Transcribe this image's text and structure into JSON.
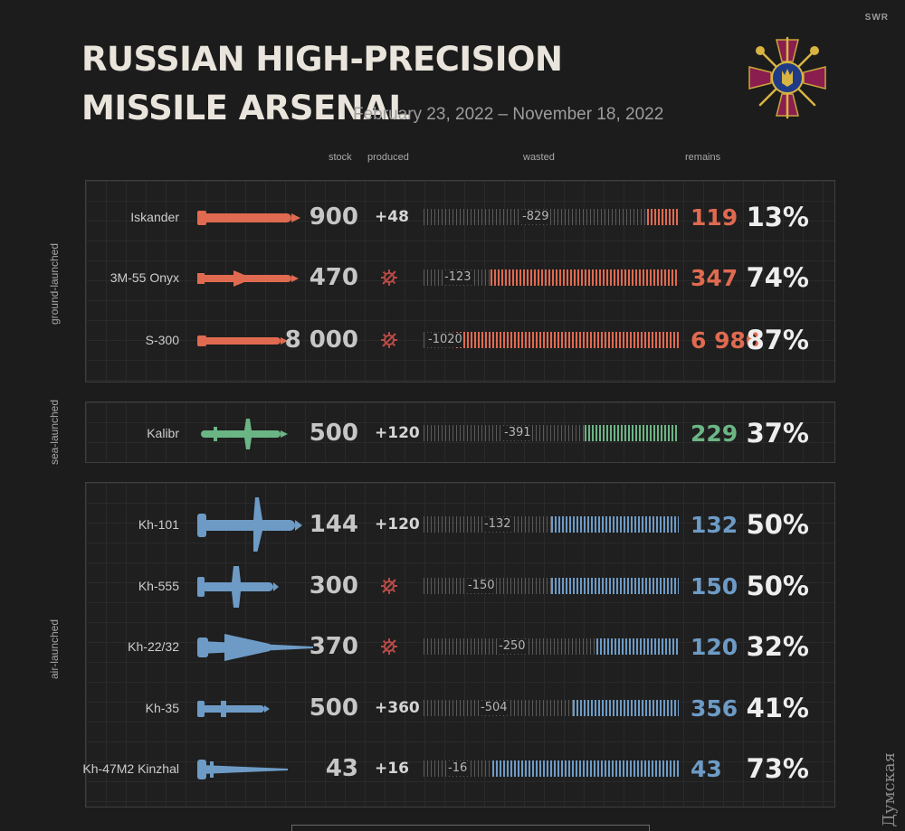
{
  "brand": "SWR",
  "title_line1": "RUSSIAN HIGH-PRECISION",
  "title_line2": "MISSILE ARSENAL",
  "date_range": "February 23, 2022 – November 18, 2022",
  "watermark": "Думская",
  "headers": {
    "stock": "stock",
    "produced": "produced",
    "wasted": "wasted",
    "remains": "remains"
  },
  "groups": {
    "ground": "ground-launched",
    "sea": "sea-launched",
    "air": "air-launched"
  },
  "colors": {
    "ground": "#e06a50",
    "sea": "#6bb585",
    "air": "#6d9bc6",
    "inactive": "#5a5a5a",
    "gear": "#b84a46"
  },
  "chart_data": {
    "type": "bar",
    "title": "RUSSIAN HIGH-PRECISION MISSILE ARSENAL",
    "subtitle": "February 23, 2022 – November 18, 2022",
    "columns": [
      "stock",
      "produced",
      "wasted",
      "remains"
    ],
    "rows": [
      {
        "name": "Iskander",
        "group": "ground",
        "stock": "900",
        "produced": "+48",
        "wasted": "-829",
        "remains": "119",
        "percent": "13%",
        "remain_value": 119,
        "wasted_value": 829,
        "no_production": false
      },
      {
        "name": "3M-55 Onyx",
        "group": "ground",
        "stock": "470",
        "produced": "",
        "wasted": "-123",
        "remains": "347",
        "percent": "74%",
        "remain_value": 347,
        "wasted_value": 123,
        "no_production": true
      },
      {
        "name": "S-300",
        "group": "ground",
        "stock": "8 000",
        "produced": "",
        "wasted": "-1020",
        "remains": "6 980",
        "percent": "87%",
        "remain_value": 6980,
        "wasted_value": 1020,
        "no_production": true
      },
      {
        "name": "Kalibr",
        "group": "sea",
        "stock": "500",
        "produced": "+120",
        "wasted": "-391",
        "remains": "229",
        "percent": "37%",
        "remain_value": 229,
        "wasted_value": 391,
        "no_production": false
      },
      {
        "name": "Kh-101",
        "group": "air",
        "stock": "144",
        "produced": "+120",
        "wasted": "-132",
        "remains": "132",
        "percent": "50%",
        "remain_value": 132,
        "wasted_value": 132,
        "no_production": false
      },
      {
        "name": "Kh-555",
        "group": "air",
        "stock": "300",
        "produced": "",
        "wasted": "-150",
        "remains": "150",
        "percent": "50%",
        "remain_value": 150,
        "wasted_value": 150,
        "no_production": true
      },
      {
        "name": "Kh-22/32",
        "group": "air",
        "stock": "370",
        "produced": "",
        "wasted": "-250",
        "remains": "120",
        "percent": "32%",
        "remain_value": 120,
        "wasted_value": 250,
        "no_production": true
      },
      {
        "name": "Kh-35",
        "group": "air",
        "stock": "500",
        "produced": "+360",
        "wasted": "-504",
        "remains": "356",
        "percent": "41%",
        "remain_value": 356,
        "wasted_value": 504,
        "no_production": false
      },
      {
        "name": "Kh-47M2 Kinzhal",
        "group": "air",
        "stock": "43",
        "produced": "+16",
        "wasted": "-16",
        "remains": "43",
        "percent": "73%",
        "remain_value": 43,
        "wasted_value": 16,
        "no_production": false
      }
    ]
  }
}
